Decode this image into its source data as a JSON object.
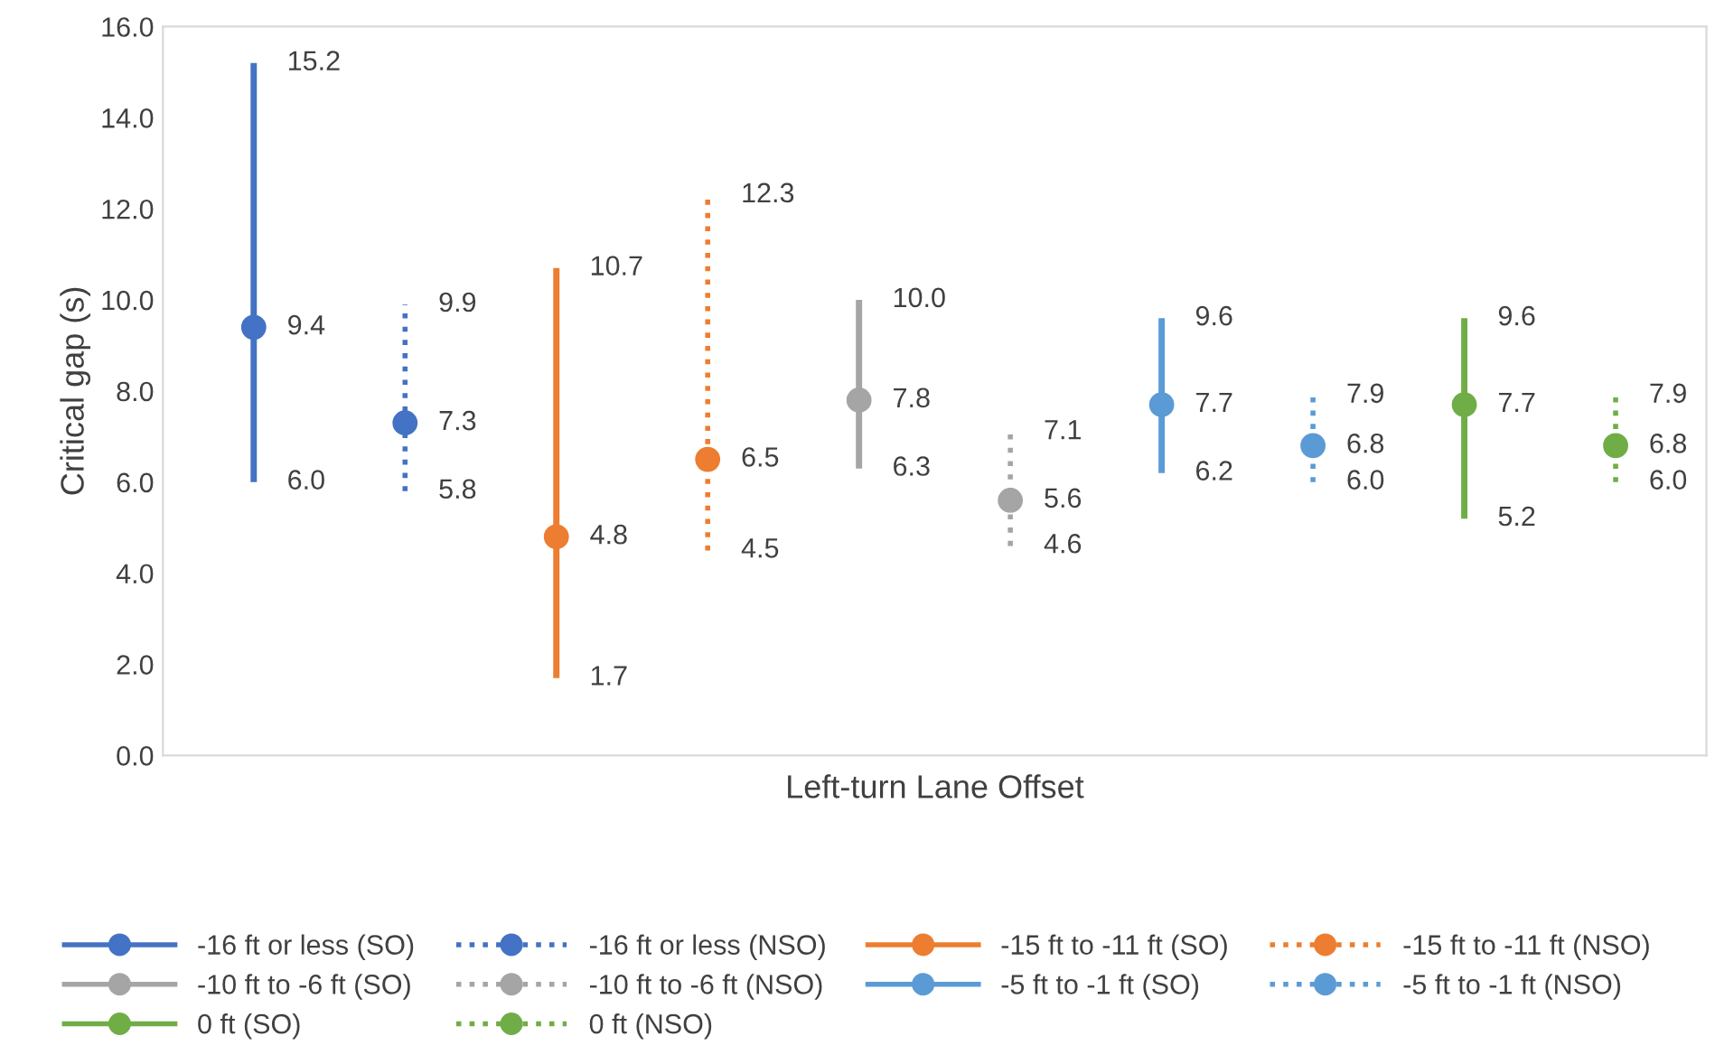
{
  "chart_data": {
    "type": "scatter",
    "xlabel": "Left-turn Lane Offset",
    "ylabel": "Critical gap (s)",
    "categories": [
      null,
      null,
      null,
      null,
      null,
      null,
      null,
      null,
      null,
      null
    ],
    "ylim": [
      0,
      16
    ],
    "yticks": [
      {
        "value": 0,
        "label": "0.0"
      },
      {
        "value": 2,
        "label": "2.0"
      },
      {
        "value": 4,
        "label": "4.0"
      },
      {
        "value": 6,
        "label": "6.0"
      },
      {
        "value": 8,
        "label": "8.0"
      },
      {
        "value": 10,
        "label": "10.0"
      },
      {
        "value": 12,
        "label": "12.0"
      },
      {
        "value": 14,
        "label": "14.0"
      },
      {
        "value": 16,
        "label": "16.0"
      }
    ],
    "annotations": [
      "15.2",
      "6.0",
      "9.9",
      "5.8",
      "10.7",
      "1.7",
      "12.3",
      "4.5",
      "10.0",
      "6.3",
      "7.1",
      "4.6",
      "9.6",
      "6.2",
      "7.9",
      "6.0",
      "9.6",
      "5.2",
      "7.9",
      "6.0"
    ],
    "grid": false,
    "legend": "bottom",
    "marker": "circle",
    "data_labels": true,
    "series": [
      {
        "name": "-16 ft or less (SO)",
        "color": "#4472c4",
        "line_style": "solid",
        "values": [
          9.4,
          null,
          null,
          null,
          null,
          null,
          null,
          null,
          null,
          null
        ],
        "errors": [
          [
            6.0,
            15.2
          ],
          null,
          null,
          null,
          null,
          null,
          null,
          null,
          null,
          null
        ]
      },
      {
        "name": "-16 ft or less (NSO)",
        "color": "#4472c4",
        "line_style": "dotted",
        "values": [
          null,
          7.3,
          null,
          null,
          null,
          null,
          null,
          null,
          null,
          null
        ],
        "errors": [
          null,
          [
            5.8,
            9.9
          ],
          null,
          null,
          null,
          null,
          null,
          null,
          null,
          null
        ]
      },
      {
        "name": "-15 ft to -11 ft (SO)",
        "color": "#ed7d31",
        "line_style": "solid",
        "values": [
          null,
          null,
          4.8,
          null,
          null,
          null,
          null,
          null,
          null,
          null
        ],
        "errors": [
          null,
          null,
          [
            1.7,
            10.7
          ],
          null,
          null,
          null,
          null,
          null,
          null,
          null
        ]
      },
      {
        "name": "-15 ft to -11 ft (NSO)",
        "color": "#ed7d31",
        "line_style": "dotted",
        "values": [
          null,
          null,
          null,
          6.5,
          null,
          null,
          null,
          null,
          null,
          null
        ],
        "errors": [
          null,
          null,
          null,
          [
            4.5,
            12.3
          ],
          null,
          null,
          null,
          null,
          null,
          null
        ]
      },
      {
        "name": "-10 ft to -6 ft (SO)",
        "color": "#a5a5a5",
        "line_style": "solid",
        "values": [
          null,
          null,
          null,
          null,
          7.8,
          null,
          null,
          null,
          null,
          null
        ],
        "errors": [
          null,
          null,
          null,
          null,
          [
            6.3,
            10.0
          ],
          null,
          null,
          null,
          null,
          null
        ]
      },
      {
        "name": "-10 ft to -6 ft (NSO)",
        "color": "#a5a5a5",
        "line_style": "dotted",
        "values": [
          null,
          null,
          null,
          null,
          null,
          5.6,
          null,
          null,
          null,
          null
        ],
        "errors": [
          null,
          null,
          null,
          null,
          null,
          [
            4.6,
            7.1
          ],
          null,
          null,
          null,
          null
        ]
      },
      {
        "name": "-5 ft to -1 ft (SO)",
        "color": "#5b9bd5",
        "line_style": "solid",
        "values": [
          null,
          null,
          null,
          null,
          null,
          null,
          7.7,
          null,
          null,
          null
        ],
        "errors": [
          null,
          null,
          null,
          null,
          null,
          null,
          [
            6.2,
            9.6
          ],
          null,
          null,
          null
        ]
      },
      {
        "name": "-5 ft to -1 ft (NSO)",
        "color": "#5b9bd5",
        "line_style": "dotted",
        "values": [
          null,
          null,
          null,
          null,
          null,
          null,
          null,
          6.8,
          null,
          null
        ],
        "errors": [
          null,
          null,
          null,
          null,
          null,
          null,
          null,
          [
            6.0,
            7.9
          ],
          null,
          null
        ]
      },
      {
        "name": "0 ft (SO)",
        "color": "#70ad47",
        "line_style": "solid",
        "values": [
          null,
          null,
          null,
          null,
          null,
          null,
          null,
          null,
          7.7,
          null
        ],
        "errors": [
          null,
          null,
          null,
          null,
          null,
          null,
          null,
          null,
          [
            5.2,
            9.6
          ],
          null
        ]
      },
      {
        "name": "0 ft (NSO)",
        "color": "#70ad47",
        "line_style": "dotted",
        "values": [
          null,
          null,
          null,
          null,
          null,
          null,
          null,
          null,
          null,
          6.8
        ],
        "errors": [
          null,
          null,
          null,
          null,
          null,
          null,
          null,
          null,
          null,
          [
            6.0,
            7.9
          ]
        ]
      }
    ]
  }
}
